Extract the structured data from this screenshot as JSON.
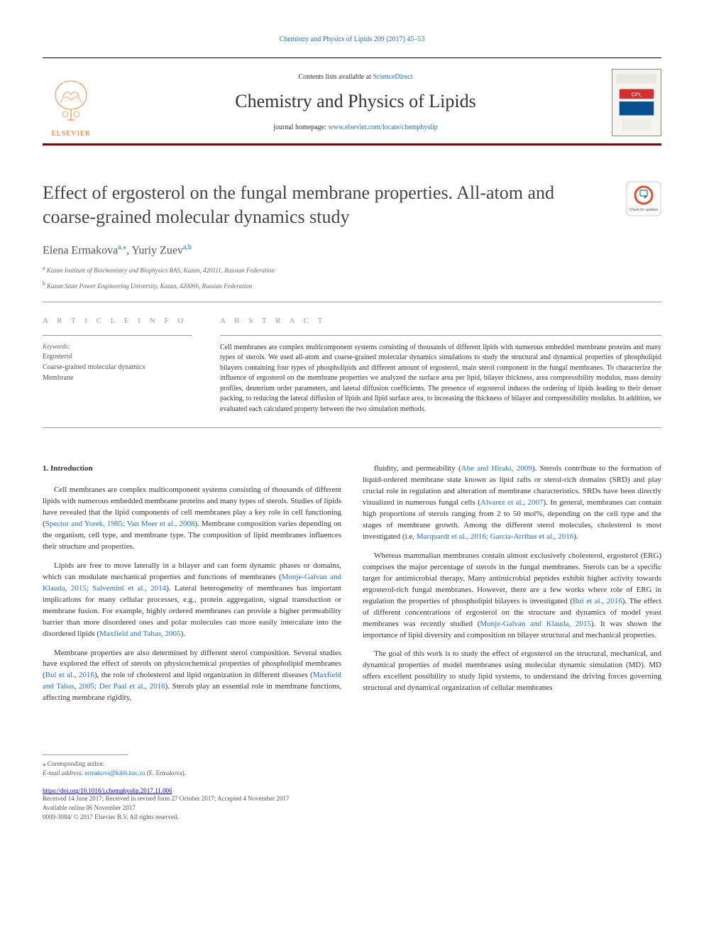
{
  "header": {
    "citation": "Chemistry and Physics of Lipids 209 (2017) 45–53",
    "contents_prefix": "Contents lists available at ",
    "contents_link": "ScienceDirect",
    "journal_name": "Chemistry and Physics of Lipids",
    "homepage_prefix": "journal homepage: ",
    "homepage_link": "www.elsevier.com/locate/chemphyslip",
    "elsevier": "ELSEVIER"
  },
  "cover": {
    "badge_text": "CPL",
    "badge_color": "#d32f2f",
    "subtitle_color": "#0a4f8f"
  },
  "check_updates": {
    "label": "Check for updates",
    "ring_color": "#e84e2c",
    "mark_color": "#00838f"
  },
  "title": "Effect of ergosterol on the fungal membrane properties. All-atom and coarse-grained molecular dynamics study",
  "authors_html": "Elena Ermakova|a,*|, Yuriy Zuev|a,b",
  "authors": [
    {
      "name": "Elena Ermakova",
      "affil": "a,⁎"
    },
    {
      "name": "Yuriy Zuev",
      "affil": "a,b"
    }
  ],
  "affiliations": [
    {
      "sup": "a",
      "text": "Kazan Institute of Biochemistry and Biophysics RAS, Kazan, 420111, Russian Federation"
    },
    {
      "sup": "b",
      "text": "Kazan State Power Engineering University, Kazan, 420066, Russian Federation"
    }
  ],
  "labels": {
    "article_info": "A R T I C L E  I N F O",
    "abstract": "A B S T R A C T",
    "keywords": "Keywords:"
  },
  "keywords": [
    "Ergosterol",
    "Coarse-grained molecular dynamics",
    "Membrane"
  ],
  "abstract": "Cell membranes are complex multicomponent systems consisting of thousands of different lipids with numerous embedded membrane proteins and many types of sterols. We used all-atom and coarse-grained molecular dynamics simulations to study the structural and dynamical properties of phospholipid bilayers containing four types of phospholipids and different amount of ergosterol, main sterol component in the fungal membranes. To characterize the influence of ergosterol on the membrane properties we analyzed the surface area per lipid, bilayer thickness, area compressibility modulus, mass density profiles, deuterium order parameters, and lateral diffusion coefficients. The presence of ergosterol induces the ordering of lipids leading to their denser packing, to reducing the lateral diffusion of lipids and lipid surface area, to increasing the thickness of bilayer and compressibility modulus. In addition, we evaluated each calculated property between the two simulation methods.",
  "body": {
    "heading": "1. Introduction",
    "left": [
      "Cell membranes are complex multicomponent systems consisting of thousands of different lipids with numerous embedded membrane proteins and many types of sterols. Studies of lipids have revealed that the lipid components of cell membranes play a key role in cell functioning (|Spector and Yorek, 1985; Van Meer et al., 2008|). Membrane composition varies depending on the organism, cell type, and membrane type. The composition of lipid membranes influences their structure and properties.",
      "Lipids are free to move laterally in a bilayer and can form dynamic phases or domains, which can modulate mechanical properties and functions of membranes (|Monje-Galvan and Klauda, 2015; Salvemini et al., 2014|). Lateral heterogeneity of membranes has important implications for many cellular processes, e.g., protein aggregation, signal transduction or membrane fusion. For example, highly ordered membranes can provide a higher permeability barrier than more disordered ones and polar molecules can more easily intercalate into the disordered lipids (|Maxfield and Tabas, 2005|).",
      "Membrane properties are also determined by different sterol composition. Several studies have explored the effect of sterols on physicochemical properties of phospholipid membranes (|Bui et al., 2016|), the role of cholesterol and lipid organization in different diseases (|Maxfield and Tabas, 2005; Der Paal et al., 2016|). Sterols play an essential role in membrane functions, affecting membrane rigidity,"
    ],
    "right": [
      "fluidity, and permeability (|Abe and Hiraki, 2009|). Sterols contribute to the formation of liquid-ordered membrane state known as lipid rafts or sterol-rich domains (SRD) and play crucial role in regulation and alteration of membrane characteristics. SRDs have been directly visualized in numerous fungal cells (|Alvarez et al., 2007|). In general, membranes can contain high proportions of sterols ranging from 2 to 50 mol%, depending on the cell type and the stages of membrane growth. Among the different sterol molecules, cholesterol is most investigated (i.e, |Marquardt et al., 2016; García-Arribas et al., 2016|).",
      "Whereas mammalian membranes contain almost exclusively cholesterol, ergosterol (ERG) comprises the major percentage of sterols in the fungal membranes. Sterols can be a specific target for antimicrobial therapy. Many antimicrobial peptides exhibit higher activity towards ergosterol-rich fungal membranes. However, there are a few works where role of ERG in regulation the properties of phospholipid bilayers is investigated (|Bui et al., 2016|). The effect of different concentrations of ergosterol on the structure and dynamics of model yeast membranes was recently studied (|Monje-Galvan and Klauda, 2015|). It was shown the importance of lipid diversity and composition on bilayer structural and mechanical properties.",
      "The goal of this work is to study the effect of ergosterol on the structural, mechanical, and dynamical properties of model membranes using molecular dynamic simulation (MD). MD offers excellent possibility to study lipid systems, to understand the driving forces governing structural and dynamical organization of cellular membranes"
    ]
  },
  "footer": {
    "corr": "⁎ Corresponding author.",
    "email_label": "E-mail address: ",
    "email": "ermakova@kibb.knc.ru",
    "email_suffix": " (E. Ermakova).",
    "doi": "https://doi.org/10.1016/j.chemphyslip.2017.11.006",
    "received": "Received 14 June 2017; Received in revised form 27 October 2017; Accepted 4 November 2017",
    "available": "Available online 06 November 2017",
    "copyright": "0009-3084/ © 2017 Elsevier B.V. All rights reserved."
  },
  "colors": {
    "link": "#1a73e8",
    "rule": "#8B0000",
    "elsevier_orange": "#ff6b00"
  }
}
